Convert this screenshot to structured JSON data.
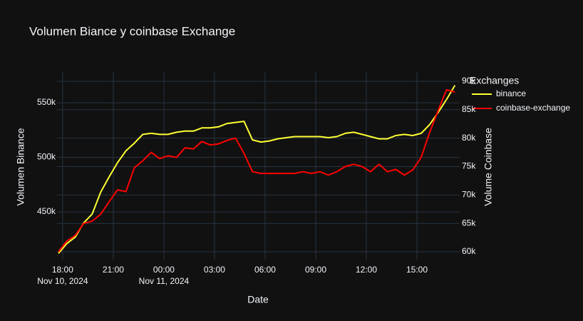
{
  "chart_data": {
    "type": "line",
    "title": "Volumen Biance y coinbase Exchange",
    "x_label": "Date",
    "y_label": "Volumen Binance",
    "y2_label": "Volume Coinbase",
    "legend_title": "Exchanges",
    "legend": "top-right-outside",
    "grid": true,
    "x": [
      "2024-11-10 17:45",
      "2024-11-10 18:15",
      "2024-11-10 18:45",
      "2024-11-10 19:15",
      "2024-11-10 19:45",
      "2024-11-10 20:15",
      "2024-11-10 20:45",
      "2024-11-10 21:15",
      "2024-11-10 21:45",
      "2024-11-10 22:15",
      "2024-11-10 22:45",
      "2024-11-10 23:15",
      "2024-11-10 23:45",
      "2024-11-11 00:15",
      "2024-11-11 00:45",
      "2024-11-11 01:15",
      "2024-11-11 01:45",
      "2024-11-11 02:15",
      "2024-11-11 02:45",
      "2024-11-11 03:15",
      "2024-11-11 03:45",
      "2024-11-11 04:15",
      "2024-11-11 04:45",
      "2024-11-11 05:15",
      "2024-11-11 05:45",
      "2024-11-11 06:15",
      "2024-11-11 06:45",
      "2024-11-11 07:15",
      "2024-11-11 07:45",
      "2024-11-11 08:15",
      "2024-11-11 08:45",
      "2024-11-11 09:15",
      "2024-11-11 09:45",
      "2024-11-11 10:15",
      "2024-11-11 10:45",
      "2024-11-11 11:15",
      "2024-11-11 11:45",
      "2024-11-11 12:15",
      "2024-11-11 12:45",
      "2024-11-11 13:15",
      "2024-11-11 13:45",
      "2024-11-11 14:15",
      "2024-11-11 14:45",
      "2024-11-11 15:15",
      "2024-11-11 15:45",
      "2024-11-11 16:15",
      "2024-11-11 16:45",
      "2024-11-11 17:15"
    ],
    "xlim": [
      "2024-11-10 17:40",
      "2024-11-11 17:32"
    ],
    "xticks": [
      {
        "value": "2024-11-10 18:00",
        "label": "18:00"
      },
      {
        "value": "2024-11-10 21:00",
        "label": "21:00"
      },
      {
        "value": "2024-11-11 00:00",
        "label": "00:00"
      },
      {
        "value": "2024-11-11 03:00",
        "label": "03:00"
      },
      {
        "value": "2024-11-11 06:00",
        "label": "06:00"
      },
      {
        "value": "2024-11-11 09:00",
        "label": "09:00"
      },
      {
        "value": "2024-11-11 12:00",
        "label": "12:00"
      },
      {
        "value": "2024-11-11 15:00",
        "label": "15:00"
      }
    ],
    "xtick_dates": [
      {
        "value": "2024-11-10 18:00",
        "label": "Nov 10, 2024"
      },
      {
        "value": "2024-11-11 00:00",
        "label": "Nov 11, 2024"
      }
    ],
    "ylim": [
      405600,
      578800
    ],
    "yticks": [
      {
        "value": 450000,
        "label": "450k"
      },
      {
        "value": 500000,
        "label": "500k"
      },
      {
        "value": 550000,
        "label": "550k"
      }
    ],
    "y2lim": [
      58500,
      91750
    ],
    "y2ticks": [
      {
        "value": 60000,
        "label": "60k"
      },
      {
        "value": 65000,
        "label": "65k"
      },
      {
        "value": 70000,
        "label": "70k"
      },
      {
        "value": 75000,
        "label": "75k"
      },
      {
        "value": 80000,
        "label": "80k"
      },
      {
        "value": 85000,
        "label": "85k"
      },
      {
        "value": 90000,
        "label": "90k"
      }
    ],
    "series": [
      {
        "name": "binance",
        "color": "#ffff33",
        "values": [
          412000,
          421000,
          427000,
          440000,
          448000,
          468000,
          482000,
          495000,
          506000,
          513000,
          521000,
          522000,
          521000,
          521000,
          523000,
          524000,
          524000,
          527000,
          527000,
          528000,
          531000,
          532000,
          533000,
          516000,
          514000,
          515000,
          517000,
          518000,
          519000,
          519000,
          519000,
          519000,
          518000,
          519000,
          522000,
          523000,
          521000,
          519000,
          517000,
          517000,
          520000,
          521000,
          520000,
          522000,
          530000,
          541000,
          553000,
          566000
        ]
      },
      {
        "name": "coinbase-exchange",
        "color": "#ff0000",
        "axis": "y2",
        "values": [
          60000,
          61900,
          62900,
          65000,
          65400,
          66600,
          68800,
          70900,
          70600,
          74800,
          76000,
          77500,
          76400,
          76900,
          76600,
          78300,
          78100,
          79400,
          78800,
          79000,
          79600,
          80000,
          77300,
          74100,
          73800,
          73800,
          73800,
          73800,
          73800,
          74100,
          73800,
          74100,
          73500,
          74100,
          75000,
          75400,
          75000,
          74100,
          75400,
          74100,
          74500,
          73500,
          74400,
          76600,
          81000,
          84800,
          88500,
          88100
        ]
      }
    ]
  }
}
